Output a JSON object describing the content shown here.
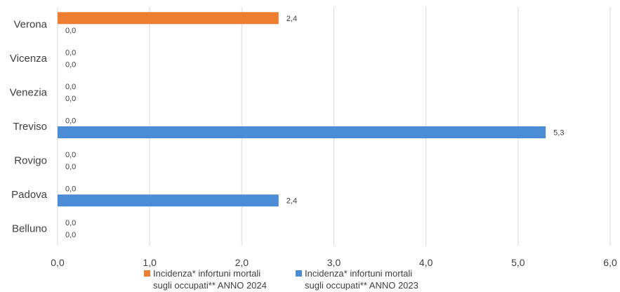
{
  "chart_data": {
    "type": "bar",
    "orientation": "horizontal",
    "categories": [
      "Verona",
      "Vicenza",
      "Venezia",
      "Treviso",
      "Rovigo",
      "Padova",
      "Belluno"
    ],
    "series": [
      {
        "name": "Incidenza* infortuni mortali sugli occupati** ANNO 2024",
        "color": "#ED7D31",
        "values": [
          2.4,
          0.0,
          0.0,
          0.0,
          0.0,
          0.0,
          0.0
        ],
        "labels": [
          "2,4",
          "0,0",
          "0,0",
          "0,0",
          "0,0",
          "0,0",
          "0,0"
        ]
      },
      {
        "name": "Incidenza* infortuni mortali sugli occupati** ANNO 2023",
        "color": "#4A8DD6",
        "values": [
          0.0,
          0.0,
          0.0,
          5.3,
          0.0,
          2.4,
          0.0
        ],
        "labels": [
          "0,0",
          "0,0",
          "0,0",
          "5,3",
          "0,0",
          "2,4",
          "0,0"
        ]
      }
    ],
    "xlim": [
      0,
      6
    ],
    "xticks": [
      "0,0",
      "1,0",
      "2,0",
      "3,0",
      "4,0",
      "5,0",
      "6,0"
    ],
    "grid": "vertical",
    "legend": "bottom"
  }
}
